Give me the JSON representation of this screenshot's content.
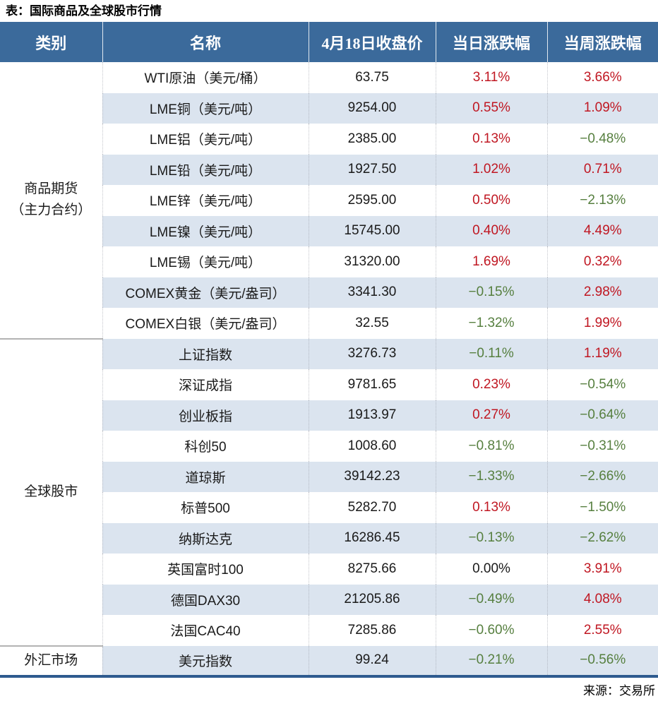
{
  "title": "表：国际商品及全球股市行情",
  "source": "来源：交易所",
  "colors": {
    "header_bg": "#3b6a9b",
    "stripe": "#dbe4ef",
    "up_red": "#c01722",
    "down_green": "#567f3f",
    "neutral_black": "#1a1a1a",
    "bottom_border": "#2e5b8f"
  },
  "table": {
    "headers": [
      "类别",
      "名称",
      "4月18日收盘价",
      "当日涨跌幅",
      "当周涨跌幅"
    ],
    "groups": [
      {
        "category": "商品期货（主力合约）",
        "category_lines": [
          "商品期货",
          "（主力合约）"
        ],
        "rows": [
          {
            "name": "WTI原油（美元/桶）",
            "close": "63.75",
            "day": "3.11%",
            "week": "3.66%"
          },
          {
            "name": "LME铜（美元/吨）",
            "close": "9254.00",
            "day": "0.55%",
            "week": "1.09%"
          },
          {
            "name": "LME铝（美元/吨）",
            "close": "2385.00",
            "day": "0.13%",
            "week": "−0.48%"
          },
          {
            "name": "LME铅（美元/吨）",
            "close": "1927.50",
            "day": "1.02%",
            "week": "0.71%"
          },
          {
            "name": "LME锌（美元/吨）",
            "close": "2595.00",
            "day": "0.50%",
            "week": "−2.13%"
          },
          {
            "name": "LME镍（美元/吨）",
            "close": "15745.00",
            "day": "0.40%",
            "week": "4.49%"
          },
          {
            "name": "LME锡（美元/吨）",
            "close": "31320.00",
            "day": "1.69%",
            "week": "0.32%"
          },
          {
            "name": "COMEX黄金（美元/盎司）",
            "close": "3341.30",
            "day": "−0.15%",
            "week": "2.98%"
          },
          {
            "name": "COMEX白银（美元/盎司）",
            "close": "32.55",
            "day": "−1.32%",
            "week": "1.99%"
          }
        ]
      },
      {
        "category": "全球股市",
        "category_lines": [
          "全球股市"
        ],
        "rows": [
          {
            "name": "上证指数",
            "close": "3276.73",
            "day": "−0.11%",
            "week": "1.19%"
          },
          {
            "name": "深证成指",
            "close": "9781.65",
            "day": "0.23%",
            "week": "−0.54%"
          },
          {
            "name": "创业板指",
            "close": "1913.97",
            "day": "0.27%",
            "week": "−0.64%"
          },
          {
            "name": "科创50",
            "close": "1008.60",
            "day": "−0.81%",
            "week": "−0.31%"
          },
          {
            "name": "道琼斯",
            "close": "39142.23",
            "day": "−1.33%",
            "week": "−2.66%"
          },
          {
            "name": "标普500",
            "close": "5282.70",
            "day": "0.13%",
            "week": "−1.50%"
          },
          {
            "name": "纳斯达克",
            "close": "16286.45",
            "day": "−0.13%",
            "week": "−2.62%"
          },
          {
            "name": "英国富时100",
            "close": "8275.66",
            "day": "0.00%",
            "week": "3.91%"
          },
          {
            "name": "德国DAX30",
            "close": "21205.86",
            "day": "−0.49%",
            "week": "4.08%"
          },
          {
            "name": "法国CAC40",
            "close": "7285.86",
            "day": "−0.60%",
            "week": "2.55%"
          }
        ]
      },
      {
        "category": "外汇市场",
        "category_lines": [
          "外汇市场"
        ],
        "rows": [
          {
            "name": "美元指数",
            "close": "99.24",
            "day": "−0.21%",
            "week": "−0.56%"
          }
        ]
      }
    ]
  },
  "chart_data": {
    "type": "table",
    "title": "表：国际商品及全球股市行情",
    "source": "来源：交易所",
    "columns": [
      "类别",
      "名称",
      "4月18日收盘价",
      "当日涨跌幅(%)",
      "当周涨跌幅(%)"
    ],
    "rows": [
      [
        "商品期货（主力合约）",
        "WTI原油（美元/桶）",
        63.75,
        3.11,
        3.66
      ],
      [
        "商品期货（主力合约）",
        "LME铜（美元/吨）",
        9254.0,
        0.55,
        1.09
      ],
      [
        "商品期货（主力合约）",
        "LME铝（美元/吨）",
        2385.0,
        0.13,
        -0.48
      ],
      [
        "商品期货（主力合约）",
        "LME铅（美元/吨）",
        1927.5,
        1.02,
        0.71
      ],
      [
        "商品期货（主力合约）",
        "LME锌（美元/吨）",
        2595.0,
        0.5,
        -2.13
      ],
      [
        "商品期货（主力合约）",
        "LME镍（美元/吨）",
        15745.0,
        0.4,
        4.49
      ],
      [
        "商品期货（主力合约）",
        "LME锡（美元/吨）",
        31320.0,
        1.69,
        0.32
      ],
      [
        "商品期货（主力合约）",
        "COMEX黄金（美元/盎司）",
        3341.3,
        -0.15,
        2.98
      ],
      [
        "商品期货（主力合约）",
        "COMEX白银（美元/盎司）",
        32.55,
        -1.32,
        1.99
      ],
      [
        "全球股市",
        "上证指数",
        3276.73,
        -0.11,
        1.19
      ],
      [
        "全球股市",
        "深证成指",
        9781.65,
        0.23,
        -0.54
      ],
      [
        "全球股市",
        "创业板指",
        1913.97,
        0.27,
        -0.64
      ],
      [
        "全球股市",
        "科创50",
        1008.6,
        -0.81,
        -0.31
      ],
      [
        "全球股市",
        "道琼斯",
        39142.23,
        -1.33,
        -2.66
      ],
      [
        "全球股市",
        "标普500",
        5282.7,
        0.13,
        -1.5
      ],
      [
        "全球股市",
        "纳斯达克",
        16286.45,
        -0.13,
        -2.62
      ],
      [
        "全球股市",
        "英国富时100",
        8275.66,
        0.0,
        3.91
      ],
      [
        "全球股市",
        "德国DAX30",
        21205.86,
        -0.49,
        4.08
      ],
      [
        "全球股市",
        "法国CAC40",
        7285.86,
        -0.6,
        2.55
      ],
      [
        "外汇市场",
        "美元指数",
        99.24,
        -0.21,
        -0.56
      ]
    ],
    "style_notes": "positive=red, negative=green, zero=black; zebra striping on data columns only"
  }
}
